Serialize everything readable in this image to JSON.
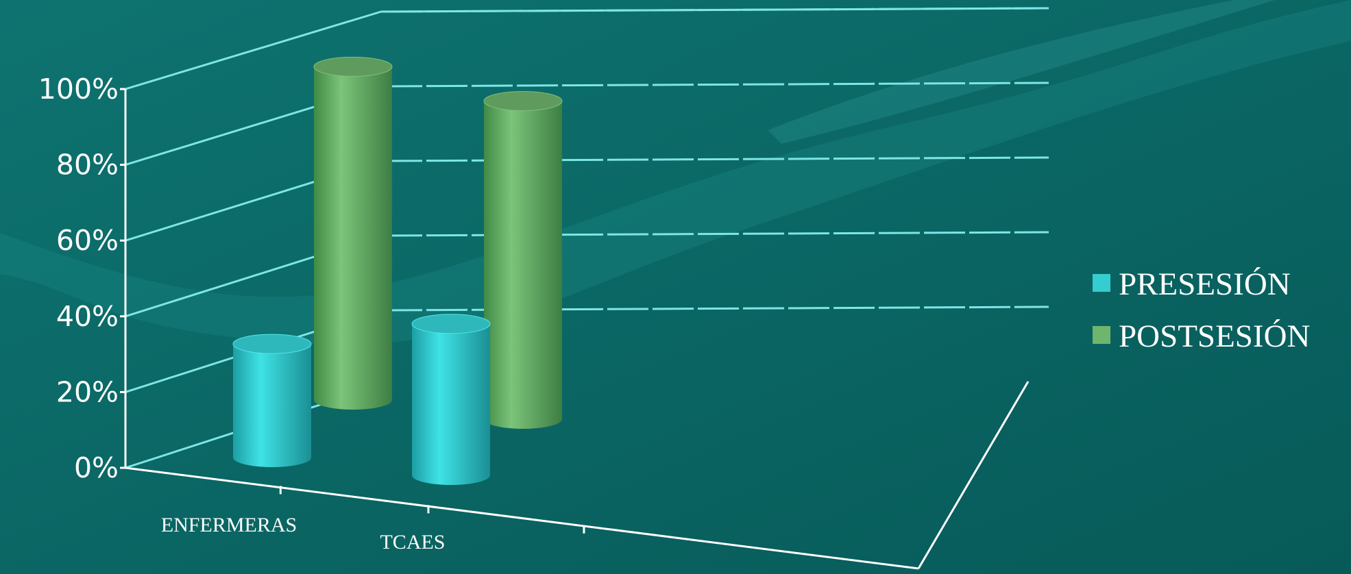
{
  "chart_data": {
    "type": "bar",
    "style": "3d-cylinder",
    "categories": [
      "ENFERMERAS",
      "TCAES"
    ],
    "series": [
      {
        "name": "PRESESIÓN",
        "values": [
          30,
          40
        ],
        "color": "#35cdd0"
      },
      {
        "name": "POSTSESIÓN",
        "values": [
          88,
          84
        ],
        "color": "#6eb66d"
      }
    ],
    "y_ticks": [
      "0%",
      "20%",
      "40%",
      "60%",
      "80%",
      "100%"
    ],
    "ylim": [
      0,
      100
    ],
    "y_unit": "%",
    "grid": true,
    "legend": "right",
    "title": "",
    "xlabel": "",
    "ylabel": ""
  },
  "colors": {
    "background": "#0b6a68",
    "gridline": "#7ee6e6",
    "axis": "#ffffff",
    "text": "#ffffff"
  }
}
